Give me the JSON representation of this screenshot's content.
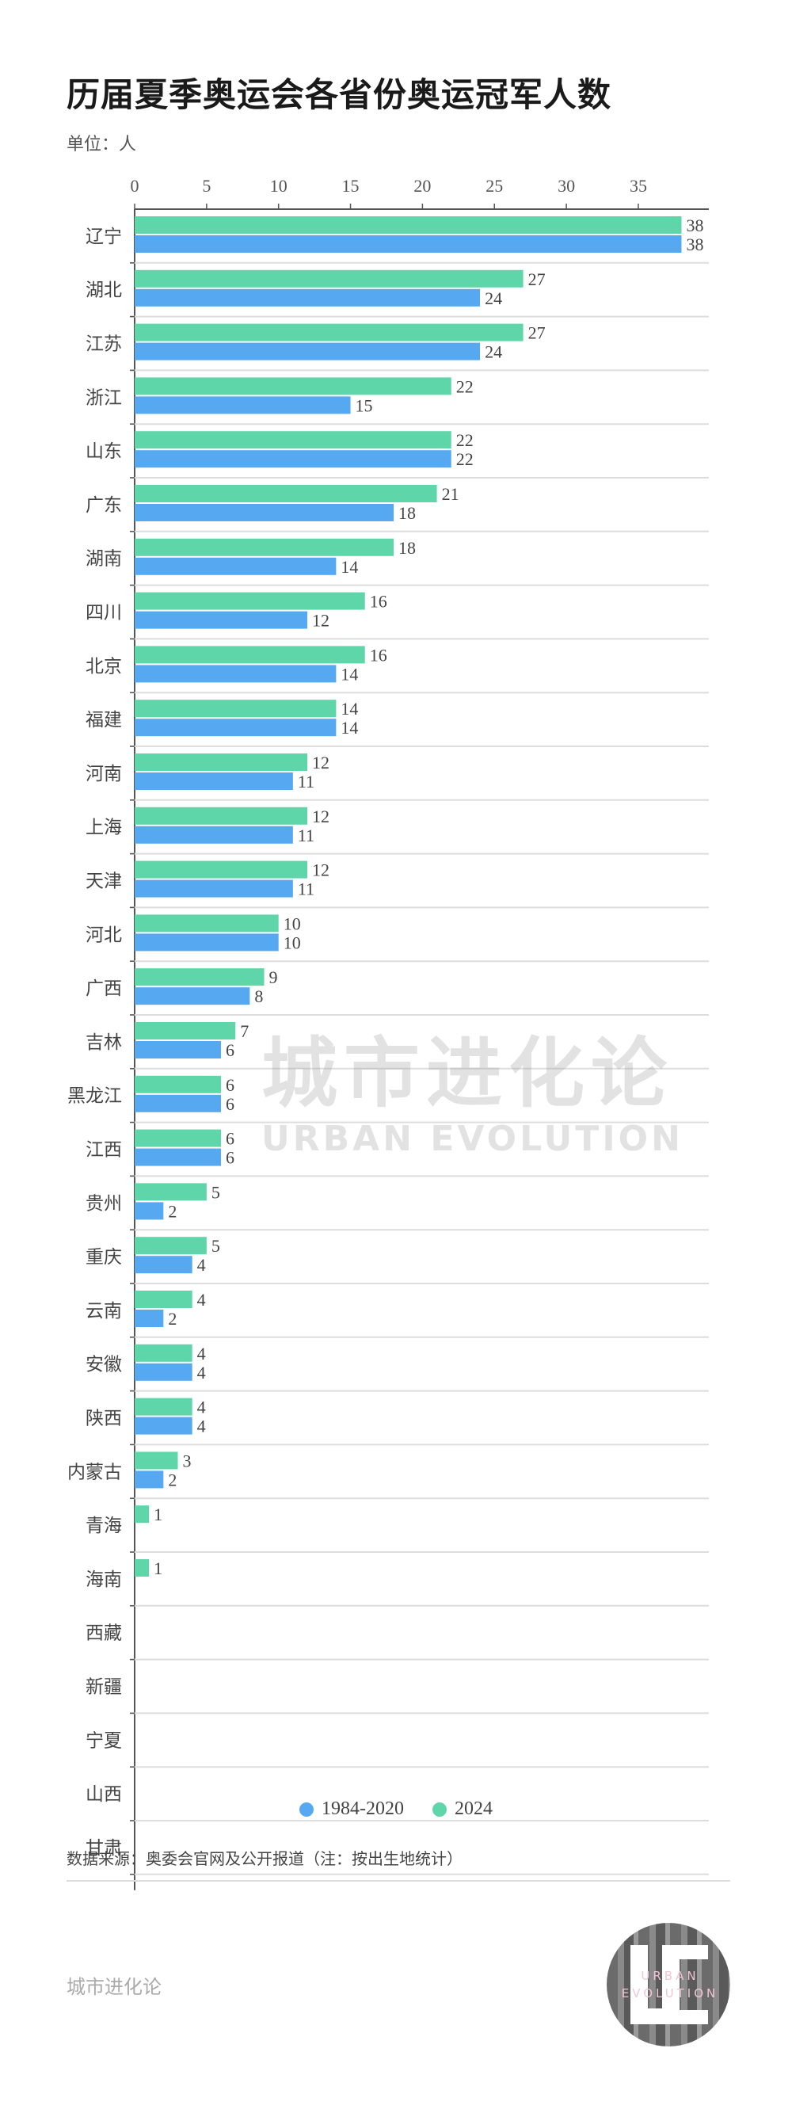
{
  "chart_data": {
    "type": "bar",
    "orientation": "horizontal",
    "title": "历届夏季奥运会各省份奥运冠军人数",
    "unit_label": "单位：人",
    "categories": [
      "辽宁",
      "湖北",
      "江苏",
      "浙江",
      "山东",
      "广东",
      "湖南",
      "四川",
      "北京",
      "福建",
      "河南",
      "上海",
      "天津",
      "河北",
      "广西",
      "吉林",
      "黑龙江",
      "江西",
      "贵州",
      "重庆",
      "云南",
      "安徽",
      "陕西",
      "内蒙古",
      "青海",
      "海南",
      "西藏",
      "新疆",
      "宁夏",
      "山西",
      "甘肃"
    ],
    "series": [
      {
        "name": "2024",
        "color": "#5ed6aa",
        "values": [
          38,
          27,
          27,
          22,
          22,
          21,
          18,
          16,
          16,
          14,
          12,
          12,
          12,
          10,
          9,
          7,
          6,
          6,
          5,
          5,
          4,
          4,
          4,
          3,
          1,
          1,
          0,
          0,
          0,
          0,
          0
        ]
      },
      {
        "name": "1984-2020",
        "color": "#56a9f1",
        "values": [
          38,
          24,
          24,
          15,
          22,
          18,
          14,
          12,
          14,
          14,
          11,
          11,
          11,
          10,
          8,
          6,
          6,
          6,
          2,
          4,
          2,
          4,
          4,
          2,
          0,
          0,
          0,
          0,
          0,
          0,
          0
        ]
      }
    ],
    "legend_order": [
      "1984-2020",
      "2024"
    ],
    "xlim": [
      0,
      40
    ],
    "xticks": [
      0,
      5,
      10,
      15,
      20,
      25,
      30,
      35
    ],
    "axis_position": "top",
    "grid": "row separators",
    "legend_position": "bottom-center"
  },
  "source": "数据来源：奥委会官网及公开报道（注：按出生地统计）",
  "footer": "城市进化论",
  "watermark": {
    "cn": "城市进化论",
    "en": "URBAN EVOLUTION"
  },
  "logo": {
    "mark": "UE",
    "text": "URBAN EVOLUTION"
  }
}
